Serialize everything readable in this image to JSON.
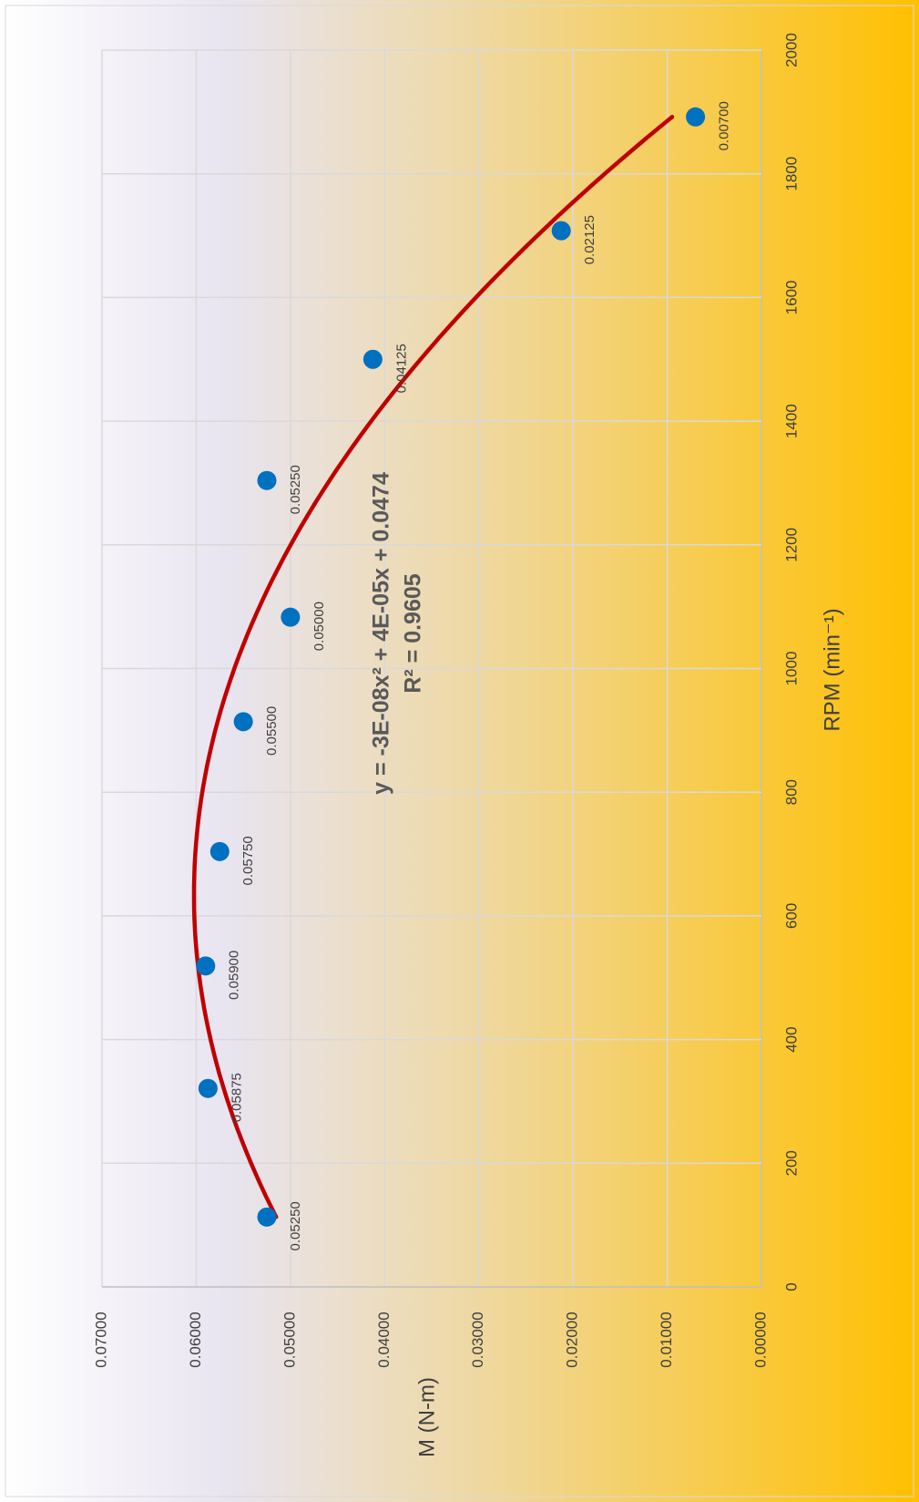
{
  "chart_data": {
    "type": "scatter",
    "xlabel": "RPM (min⁻¹)",
    "ylabel": "M (N-m)",
    "series": [
      {
        "color": "#0070c0",
        "x": [
          113,
          321,
          519,
          704,
          914,
          1083,
          1304,
          1500,
          1708,
          1892
        ],
        "values": [
          0.0525,
          0.05875,
          0.059,
          0.0575,
          0.055,
          0.05,
          0.0525,
          0.04125,
          0.02125,
          0.007
        ],
        "value_labels": [
          "0.05250",
          "0.05875",
          "0.05900",
          "0.05750",
          "0.05500",
          "0.05000",
          "0.05250",
          "0.04125",
          "0.02125",
          "0.00700"
        ]
      }
    ],
    "trendline": {
      "type": "polynomial",
      "order": 2,
      "color": "#c00000",
      "equation": "y = -3E-08x² + 4E-05x + 0.0474",
      "r_squared": "R² = 0.9605"
    },
    "xlim": [
      0,
      2000
    ],
    "xticks": [
      0,
      200,
      400,
      600,
      800,
      1000,
      1200,
      1400,
      1600,
      1800,
      2000
    ],
    "ylim": [
      0,
      0.07
    ],
    "yticks": [
      {
        "value": 0,
        "label": "0.00000"
      },
      {
        "value": 0.01,
        "label": "0.01000"
      },
      {
        "value": 0.02,
        "label": "0.02000"
      },
      {
        "value": 0.03,
        "label": "0.03000"
      },
      {
        "value": 0.04,
        "label": "0.04000"
      },
      {
        "value": 0.05,
        "label": "0.05000"
      },
      {
        "value": 0.06,
        "label": "0.06000"
      },
      {
        "value": 0.07,
        "label": "0.07000"
      }
    ],
    "grid": true
  }
}
